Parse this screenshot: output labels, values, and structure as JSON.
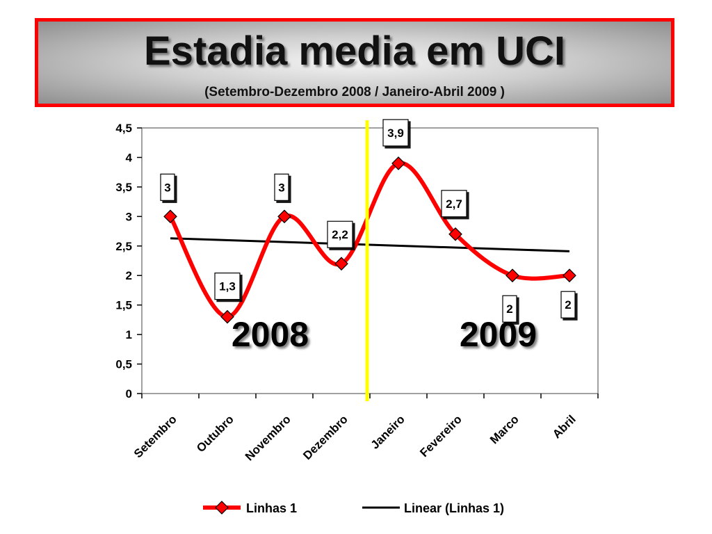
{
  "header": {
    "title": "Estadia media em UCI",
    "subtitle": "(Setembro-Dezembro 2008 / Janeiro-Abril 2009 )"
  },
  "colors": {
    "banner_border": "#ff0000",
    "series_line": "#ff0000",
    "marker_fill": "#ff0000",
    "trend_line": "#000000",
    "divider": "#ffff00"
  },
  "chart_data": {
    "type": "line",
    "categories": [
      "Setembro",
      "Outubro",
      "Novembro",
      "Dezembro",
      "Janeiro",
      "Fevereiro",
      "Marco",
      "Abril"
    ],
    "series": [
      {
        "name": "Linhas 1",
        "points": [
          {
            "category": "Setembro",
            "value": 3,
            "label": "3"
          },
          {
            "category": "Outubro",
            "value": 1.3,
            "label": "1,3"
          },
          {
            "category": "Novembro",
            "value": 3,
            "label": "3"
          },
          {
            "category": "Dezembro",
            "value": 2.2,
            "label": "2,2"
          },
          {
            "category": "Janeiro",
            "value": 3.9,
            "label": "3,9"
          },
          {
            "category": "Fevereiro",
            "value": 2.7,
            "label": "2,7"
          },
          {
            "category": "Marco",
            "value": 2,
            "label": "2"
          },
          {
            "category": "Abril",
            "value": 2,
            "label": "2"
          }
        ],
        "marker": "diamond",
        "smooth": true
      },
      {
        "name": "Linear (Linhas 1)",
        "type": "trendline",
        "start_value": 2.63,
        "end_value": 2.41
      }
    ],
    "ylim": [
      0,
      4.5
    ],
    "yticks": [
      {
        "value": 0,
        "label": "0"
      },
      {
        "value": 0.5,
        "label": "0,5"
      },
      {
        "value": 1,
        "label": "1"
      },
      {
        "value": 1.5,
        "label": "1,5"
      },
      {
        "value": 2,
        "label": "2"
      },
      {
        "value": 2.5,
        "label": "2,5"
      },
      {
        "value": 3,
        "label": "3"
      },
      {
        "value": 3.5,
        "label": "3,5"
      },
      {
        "value": 4,
        "label": "4"
      },
      {
        "value": 4.5,
        "label": "4,5"
      }
    ],
    "annotations": [
      {
        "text": "2008",
        "center_category_index": 2
      },
      {
        "text": "2009",
        "center_category_index": 6
      }
    ],
    "divider_between": [
      "Dezembro",
      "Janeiro"
    ],
    "grid": false,
    "legend": {
      "position": "bottom",
      "items": [
        "Linhas 1",
        "Linear (Linhas 1)"
      ]
    }
  }
}
